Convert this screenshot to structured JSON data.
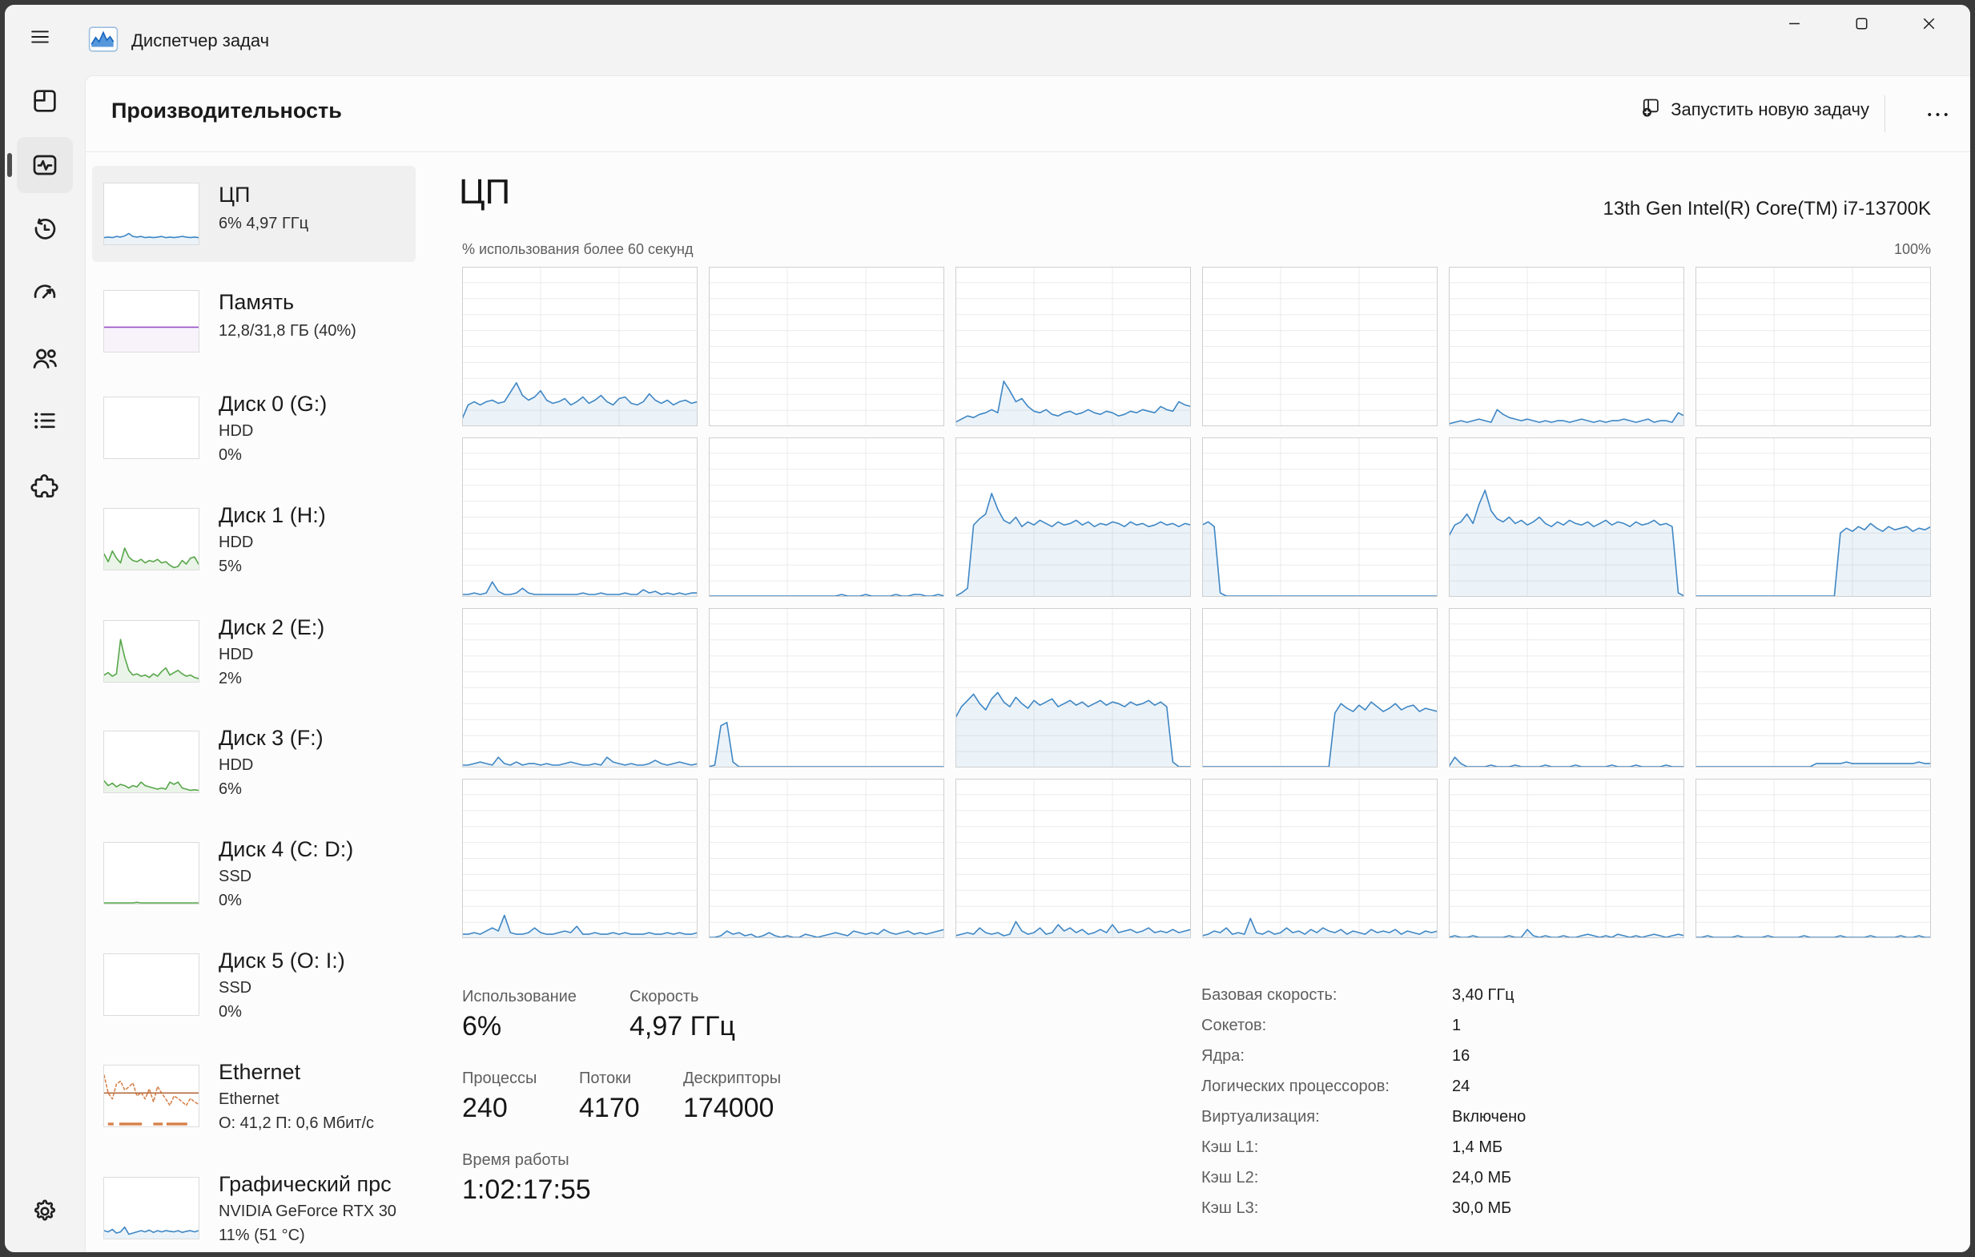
{
  "window": {
    "title": "Диспетчер задач"
  },
  "header": {
    "title": "Производительность",
    "run_new_task_label": "Запустить новую задачу",
    "more_label": "•••"
  },
  "nav": {
    "items": [
      {
        "id": "processes",
        "selected": false
      },
      {
        "id": "performance",
        "selected": true
      },
      {
        "id": "app-history",
        "selected": false
      },
      {
        "id": "startup-apps",
        "selected": false
      },
      {
        "id": "users",
        "selected": false
      },
      {
        "id": "details",
        "selected": false
      },
      {
        "id": "services",
        "selected": false
      }
    ],
    "settings_id": "settings"
  },
  "perf_list": [
    {
      "id": "cpu",
      "title": "ЦП",
      "lines": [
        "6% 4,97 ГГц"
      ],
      "selected": true,
      "spark": {
        "kind": "line",
        "color": "#3E86C4",
        "fill": "rgba(62,134,196,0.10)",
        "series": [
          10,
          11,
          10,
          12,
          11,
          13,
          17,
          12,
          11,
          12,
          10,
          11,
          10,
          11,
          12,
          10,
          11,
          10,
          11,
          12,
          11,
          10,
          11,
          10
        ]
      }
    },
    {
      "id": "memory",
      "title": "Память",
      "lines": [
        "12,8/31,8 ГБ (40%)"
      ],
      "selected": false,
      "spark": {
        "kind": "level",
        "color": "#9A4FC4",
        "level": 40,
        "fill": "rgba(154,79,196,0.07)"
      }
    },
    {
      "id": "disk-0",
      "title": "Диск 0 (G:)",
      "lines": [
        "HDD",
        "0%"
      ],
      "selected": false,
      "spark": {
        "kind": "line",
        "color": "#57A64A",
        "fill": "rgba(87,166,74,0.12)",
        "series": []
      }
    },
    {
      "id": "disk-1",
      "title": "Диск 1 (H:)",
      "lines": [
        "HDD",
        "5%"
      ],
      "selected": false,
      "spark": {
        "kind": "line",
        "color": "#57A64A",
        "fill": "rgba(87,166,74,0.12)",
        "series": [
          25,
          12,
          30,
          18,
          10,
          35,
          20,
          14,
          12,
          16,
          10,
          14,
          12,
          16,
          10,
          12,
          6,
          2,
          4,
          14,
          8,
          18,
          20,
          8
        ]
      }
    },
    {
      "id": "disk-2",
      "title": "Диск 2 (E:)",
      "lines": [
        "HDD",
        "2%"
      ],
      "selected": false,
      "spark": {
        "kind": "line",
        "color": "#57A64A",
        "fill": "rgba(87,166,74,0.12)",
        "series": [
          10,
          14,
          8,
          12,
          70,
          40,
          18,
          10,
          12,
          8,
          10,
          6,
          12,
          8,
          16,
          22,
          10,
          14,
          18,
          12,
          8,
          10,
          6,
          4
        ]
      }
    },
    {
      "id": "disk-3",
      "title": "Диск 3 (F:)",
      "lines": [
        "HDD",
        "6%"
      ],
      "selected": false,
      "spark": {
        "kind": "line",
        "color": "#57A64A",
        "fill": "rgba(87,166,74,0.12)",
        "series": [
          18,
          10,
          14,
          8,
          12,
          10,
          6,
          10,
          8,
          16,
          10,
          8,
          6,
          4,
          6,
          4,
          16,
          12,
          16,
          6,
          4,
          2,
          3,
          2
        ]
      }
    },
    {
      "id": "disk-4",
      "title": "Диск 4 (C: D:)",
      "lines": [
        "SSD",
        "0%"
      ],
      "selected": false,
      "spark": {
        "kind": "line",
        "color": "#57A64A",
        "fill": "rgba(87,166,74,0.12)",
        "series": [
          0,
          0,
          0,
          0,
          0,
          0,
          0,
          0,
          1,
          0,
          0,
          0,
          0,
          0,
          0,
          0,
          0,
          0,
          0,
          0,
          0,
          0,
          0,
          0
        ]
      }
    },
    {
      "id": "disk-5",
      "title": "Диск 5 (O: I:)",
      "lines": [
        "SSD",
        "0%"
      ],
      "selected": false,
      "spark": {
        "kind": "line",
        "color": "#57A64A",
        "fill": "rgba(87,166,74,0.12)",
        "series": []
      }
    },
    {
      "id": "ethernet",
      "title": "Ethernet",
      "lines": [
        "Ethernet",
        "О: 41,2 П: 0,6 Мбит/с"
      ],
      "selected": false,
      "spark": {
        "kind": "ethernet",
        "color": "#D6824C",
        "dash": "3 3",
        "level": 55,
        "level_color": "#B4693A",
        "series": [
          85,
          55,
          45,
          70,
          75,
          60,
          65,
          72,
          50,
          56,
          45,
          62,
          40,
          66,
          55,
          45,
          34,
          50,
          46,
          40,
          34,
          46,
          40,
          36
        ],
        "marks": [
          [
            0.04,
            0.1
          ],
          [
            0.16,
            0.4
          ],
          [
            0.52,
            0.62
          ],
          [
            0.66,
            0.88
          ]
        ]
      }
    },
    {
      "id": "gpu",
      "title": "Графический прс",
      "lines": [
        "NVIDIA GeForce RTX 30",
        "11% (51 °C)"
      ],
      "selected": false,
      "spark": {
        "kind": "line",
        "color": "#3E86C4",
        "fill": "rgba(62,134,196,0.10)",
        "series": [
          12,
          10,
          14,
          8,
          10,
          18,
          6,
          8,
          10,
          12,
          10,
          13,
          9,
          12,
          10,
          12,
          11,
          10,
          12,
          9,
          11,
          12,
          10,
          12
        ]
      }
    }
  ],
  "detail": {
    "title": "ЦП",
    "cpu_name": "13th Gen Intel(R) Core(TM) i7-13700K",
    "chart_caption": "% использования более 60 секунд",
    "scale_max_label": "100%"
  },
  "stats": {
    "usage": {
      "label": "Использование",
      "value": "6%"
    },
    "speed": {
      "label": "Скорость",
      "value": "4,97 ГГц"
    },
    "processes": {
      "label": "Процессы",
      "value": "240"
    },
    "threads": {
      "label": "Потоки",
      "value": "4170"
    },
    "handles": {
      "label": "Дескрипторы",
      "value": "174000"
    },
    "uptime": {
      "label": "Время работы",
      "value": "1:02:17:55"
    }
  },
  "specs": [
    {
      "label": "Базовая скорость:",
      "value": "3,40 ГГц"
    },
    {
      "label": "Сокетов:",
      "value": "1"
    },
    {
      "label": "Ядра:",
      "value": "16"
    },
    {
      "label": "Логических процессоров:",
      "value": "24"
    },
    {
      "label": "Виртуализация:",
      "value": "Включено"
    },
    {
      "label": "Кэш L1:",
      "value": "1,4 МБ"
    },
    {
      "label": "Кэш L2:",
      "value": "24,0 МБ"
    },
    {
      "label": "Кэш L3:",
      "value": "30,0 МБ"
    }
  ],
  "chart_data": {
    "type": "line",
    "title": "ЦП — % использования более 60 секунд",
    "xlabel": "60 секунд",
    "ylabel": "% использования",
    "ylim": [
      0,
      100
    ],
    "grid": "on",
    "layout": "small multiples, 6 columns x 4 rows, one chart per logical processor (24)",
    "cores": [
      [
        4,
        13,
        15,
        13,
        15,
        16,
        14,
        15,
        21,
        27,
        19,
        16,
        18,
        22,
        16,
        14,
        15,
        17,
        13,
        15,
        18,
        14,
        16,
        19,
        15,
        13,
        17,
        18,
        14,
        13,
        15,
        20,
        16,
        14,
        16,
        13,
        15,
        16,
        14,
        15
      ],
      [
        0,
        0,
        0,
        0,
        0,
        0,
        0,
        0,
        0,
        0,
        0,
        0,
        0,
        0,
        0,
        0,
        0,
        0,
        0,
        0,
        0,
        0,
        0,
        0,
        0,
        0,
        0,
        0,
        0,
        0,
        0,
        0,
        0,
        0,
        0,
        0,
        0,
        0,
        0,
        0
      ],
      [
        2,
        4,
        6,
        5,
        7,
        8,
        10,
        8,
        28,
        22,
        15,
        17,
        12,
        9,
        8,
        10,
        7,
        6,
        8,
        9,
        7,
        8,
        10,
        8,
        7,
        9,
        8,
        6,
        7,
        9,
        8,
        10,
        9,
        8,
        12,
        10,
        9,
        15,
        13,
        12
      ],
      [
        0,
        0,
        0,
        0,
        0,
        0,
        0,
        0,
        0,
        0,
        0,
        0,
        0,
        0,
        0,
        0,
        0,
        0,
        0,
        0,
        0,
        0,
        0,
        0,
        0,
        0,
        0,
        0,
        0,
        0,
        0,
        0,
        0,
        0,
        0,
        0,
        0,
        0,
        0,
        0
      ],
      [
        1,
        2,
        3,
        2,
        3,
        4,
        3,
        2,
        10,
        7,
        5,
        4,
        3,
        4,
        3,
        2,
        3,
        2,
        3,
        3,
        2,
        3,
        4,
        3,
        2,
        3,
        2,
        3,
        3,
        4,
        3,
        2,
        3,
        4,
        2,
        3,
        3,
        2,
        8,
        6
      ],
      [
        0,
        0,
        0,
        0,
        0,
        0,
        0,
        0,
        0,
        0,
        0,
        0,
        0,
        0,
        0,
        0,
        0,
        0,
        0,
        0,
        0,
        0,
        0,
        0,
        0,
        0,
        0,
        0,
        0,
        0,
        0,
        0,
        0,
        0,
        0,
        0,
        0,
        0,
        0,
        0
      ],
      [
        1,
        1,
        2,
        1,
        2,
        9,
        3,
        1,
        1,
        2,
        5,
        2,
        1,
        1,
        1,
        1,
        1,
        1,
        1,
        1,
        2,
        1,
        1,
        2,
        1,
        1,
        1,
        2,
        1,
        1,
        4,
        2,
        3,
        1,
        2,
        1,
        2,
        1,
        2,
        2
      ],
      [
        0,
        0,
        0,
        0,
        0,
        0,
        0,
        0,
        0,
        0,
        0,
        0,
        0,
        0,
        0,
        0,
        0,
        0,
        0,
        0,
        0,
        0,
        1,
        0,
        0,
        0,
        1,
        0,
        0,
        0,
        0,
        1,
        0,
        0,
        1,
        1,
        0,
        0,
        1,
        0
      ],
      [
        0,
        2,
        5,
        45,
        49,
        52,
        65,
        55,
        48,
        46,
        50,
        44,
        47,
        45,
        48,
        46,
        44,
        47,
        45,
        46,
        48,
        45,
        47,
        44,
        46,
        45,
        47,
        46,
        44,
        47,
        45,
        46,
        44,
        45,
        47,
        45,
        46,
        44,
        46,
        45
      ],
      [
        45,
        47,
        44,
        2,
        0,
        0,
        0,
        0,
        0,
        0,
        0,
        0,
        0,
        0,
        0,
        0,
        0,
        0,
        0,
        0,
        0,
        0,
        0,
        0,
        0,
        0,
        0,
        0,
        0,
        0,
        0,
        0,
        0,
        0,
        0,
        0,
        0,
        0,
        0,
        0
      ],
      [
        38,
        45,
        47,
        52,
        46,
        58,
        67,
        54,
        49,
        47,
        50,
        46,
        48,
        45,
        47,
        50,
        46,
        44,
        47,
        45,
        48,
        46,
        45,
        47,
        44,
        46,
        48,
        45,
        47,
        46,
        44,
        47,
        45,
        46,
        48,
        45,
        46,
        44,
        2,
        0
      ],
      [
        0,
        0,
        0,
        0,
        0,
        0,
        0,
        0,
        0,
        0,
        0,
        0,
        0,
        0,
        0,
        0,
        0,
        0,
        0,
        0,
        0,
        0,
        0,
        0,
        40,
        43,
        41,
        44,
        42,
        46,
        43,
        41,
        44,
        42,
        43,
        44,
        41,
        43,
        42,
        44
      ],
      [
        1,
        1,
        2,
        3,
        2,
        1,
        6,
        2,
        1,
        3,
        1,
        2,
        2,
        1,
        2,
        1,
        1,
        2,
        3,
        2,
        1,
        1,
        2,
        1,
        6,
        3,
        2,
        1,
        2,
        1,
        1,
        2,
        4,
        2,
        1,
        2,
        3,
        2,
        1,
        2
      ],
      [
        0,
        1,
        26,
        28,
        3,
        0,
        0,
        0,
        0,
        0,
        0,
        0,
        0,
        0,
        0,
        0,
        0,
        0,
        0,
        0,
        0,
        0,
        0,
        0,
        0,
        0,
        0,
        0,
        0,
        0,
        0,
        0,
        0,
        0,
        0,
        0,
        0,
        0,
        0,
        0
      ],
      [
        31,
        38,
        42,
        46,
        40,
        36,
        43,
        47,
        41,
        38,
        44,
        40,
        37,
        42,
        39,
        41,
        43,
        38,
        40,
        42,
        39,
        41,
        38,
        40,
        42,
        39,
        41,
        40,
        38,
        41,
        39,
        40,
        42,
        39,
        41,
        38,
        3,
        0,
        0,
        0
      ],
      [
        0,
        0,
        0,
        0,
        0,
        0,
        0,
        0,
        0,
        0,
        0,
        0,
        0,
        0,
        0,
        0,
        0,
        0,
        0,
        0,
        0,
        0,
        34,
        40,
        37,
        35,
        39,
        36,
        41,
        38,
        35,
        37,
        40,
        36,
        38,
        39,
        35,
        37,
        36,
        35
      ],
      [
        0,
        6,
        2,
        0,
        0,
        0,
        0,
        1,
        0,
        0,
        0,
        1,
        0,
        0,
        0,
        0,
        1,
        0,
        0,
        0,
        0,
        1,
        0,
        0,
        0,
        0,
        0,
        1,
        0,
        0,
        0,
        1,
        0,
        0,
        0,
        0,
        1,
        0,
        0,
        0
      ],
      [
        0,
        0,
        0,
        0,
        0,
        0,
        0,
        0,
        0,
        0,
        0,
        0,
        0,
        0,
        0,
        0,
        0,
        0,
        0,
        0,
        2,
        2,
        2,
        2,
        2,
        3,
        2,
        2,
        2,
        2,
        2,
        2,
        2,
        2,
        2,
        2,
        2,
        3,
        2,
        2
      ],
      [
        2,
        2,
        3,
        2,
        4,
        6,
        4,
        14,
        3,
        2,
        2,
        3,
        6,
        3,
        2,
        2,
        3,
        4,
        3,
        7,
        2,
        2,
        3,
        2,
        2,
        3,
        2,
        3,
        2,
        2,
        2,
        3,
        2,
        2,
        3,
        2,
        3,
        2,
        2,
        3
      ],
      [
        0,
        0,
        1,
        4,
        2,
        3,
        1,
        2,
        0,
        1,
        3,
        1,
        0,
        1,
        0,
        0,
        2,
        1,
        0,
        1,
        2,
        3,
        2,
        1,
        4,
        3,
        2,
        3,
        2,
        5,
        3,
        2,
        3,
        4,
        2,
        3,
        2,
        3,
        4,
        5
      ],
      [
        1,
        2,
        3,
        2,
        6,
        3,
        2,
        3,
        1,
        2,
        10,
        4,
        2,
        3,
        6,
        2,
        3,
        8,
        4,
        6,
        3,
        5,
        2,
        3,
        5,
        3,
        8,
        3,
        4,
        5,
        3,
        4,
        6,
        3,
        4,
        3,
        5,
        3,
        4,
        5
      ],
      [
        1,
        2,
        4,
        3,
        6,
        2,
        3,
        2,
        12,
        3,
        2,
        4,
        2,
        3,
        6,
        3,
        4,
        2,
        5,
        3,
        6,
        4,
        3,
        5,
        2,
        4,
        3,
        2,
        5,
        3,
        4,
        3,
        5,
        2,
        4,
        3,
        2,
        4,
        3,
        4
      ],
      [
        0,
        1,
        0,
        0,
        1,
        0,
        0,
        0,
        0,
        0,
        1,
        0,
        0,
        5,
        1,
        0,
        1,
        0,
        0,
        1,
        0,
        0,
        1,
        2,
        1,
        0,
        1,
        0,
        2,
        1,
        0,
        1,
        0,
        1,
        2,
        1,
        0,
        1,
        2,
        1
      ],
      [
        0,
        0,
        1,
        0,
        0,
        0,
        0,
        1,
        0,
        0,
        0,
        0,
        1,
        0,
        0,
        0,
        0,
        0,
        1,
        0,
        0,
        0,
        0,
        0,
        1,
        0,
        0,
        0,
        0,
        1,
        0,
        0,
        0,
        0,
        1,
        0,
        0,
        1,
        0,
        0
      ]
    ]
  },
  "colors": {
    "accent_chart": "#3E86C4",
    "chart_fill": "rgba(62,134,196,0.10)",
    "disk_green": "#57A64A",
    "memory_purple": "#9A4FC4",
    "ethernet_orange": "#D6824C",
    "titlebar_bg": "#F3F3F3",
    "card_bg": "#FCFCFC",
    "selected_item_bg": "#F0F0F0",
    "cell_border": "#CFCFCF",
    "grid_line": "#EBEBEB",
    "text_primary": "#1B1B1B",
    "text_secondary": "#5E5E5E"
  }
}
